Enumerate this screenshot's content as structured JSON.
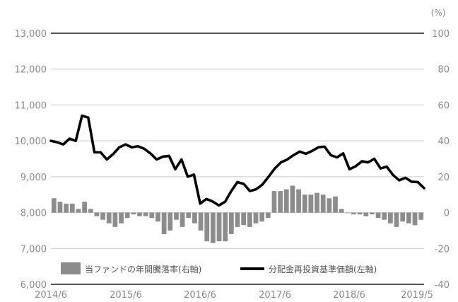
{
  "chart_data": {
    "type": "bar+line",
    "title": "",
    "left_axis": {
      "ticks": [
        "13,000",
        "12,000",
        "11,000",
        "10,000",
        "9,000",
        "8,000",
        "7,000",
        "6,000"
      ],
      "range": [
        6000,
        13000
      ]
    },
    "right_axis": {
      "unit": "(%)",
      "ticks": [
        "100",
        "80",
        "60",
        "40",
        "20",
        "0",
        "-20",
        "-40"
      ],
      "range": [
        -40,
        100
      ]
    },
    "x_ticks": [
      "2014/6",
      "2015/6",
      "2016/6",
      "2017/6",
      "2018/6",
      "2019/5"
    ],
    "legend": {
      "bar": "当ファンドの年間騰落率(右軸)",
      "line": "分配金再投資基準価額(左軸)"
    },
    "colors": {
      "bar": "#8c8c8c",
      "line": "#000000",
      "axis": "#555555",
      "grid": "#c8c8c8",
      "text": "#8a8a8a"
    },
    "series": [
      {
        "name": "当ファンドの年間騰落率(右軸)",
        "axis": "right",
        "values": [
          8,
          6,
          5,
          5,
          2,
          6,
          2,
          -2,
          -4,
          -6,
          -8,
          -6,
          -3,
          -1,
          -2,
          -2,
          -3,
          -5,
          -12,
          -10,
          -4,
          -8,
          -3,
          -6,
          -10,
          -16,
          -17,
          -16,
          -16,
          -12,
          -8,
          -7,
          -8,
          -6,
          -5,
          -3,
          12,
          12,
          13,
          15,
          13,
          10,
          10,
          11,
          10,
          8,
          9,
          2,
          0,
          -1,
          -1,
          -2,
          -1,
          -3,
          -4,
          -6,
          -8,
          -5,
          -6,
          -7,
          -4
        ]
      },
      {
        "name": "分配金再投資基準価額(左軸)",
        "axis": "left",
        "values": [
          10000,
          9960,
          9900,
          10060,
          10000,
          10700,
          10650,
          9680,
          9680,
          9480,
          9630,
          9820,
          9900,
          9820,
          9850,
          9780,
          9650,
          9480,
          9560,
          9580,
          9210,
          9480,
          9000,
          9060,
          8250,
          8380,
          8310,
          8200,
          8300,
          8600,
          8850,
          8800,
          8600,
          8650,
          8780,
          9000,
          9230,
          9400,
          9480,
          9600,
          9700,
          9640,
          9720,
          9820,
          9840,
          9600,
          9540,
          9650,
          9210,
          9290,
          9430,
          9400,
          9500,
          9230,
          9280,
          9050,
          8900,
          8970,
          8860,
          8850,
          8680
        ]
      }
    ]
  }
}
